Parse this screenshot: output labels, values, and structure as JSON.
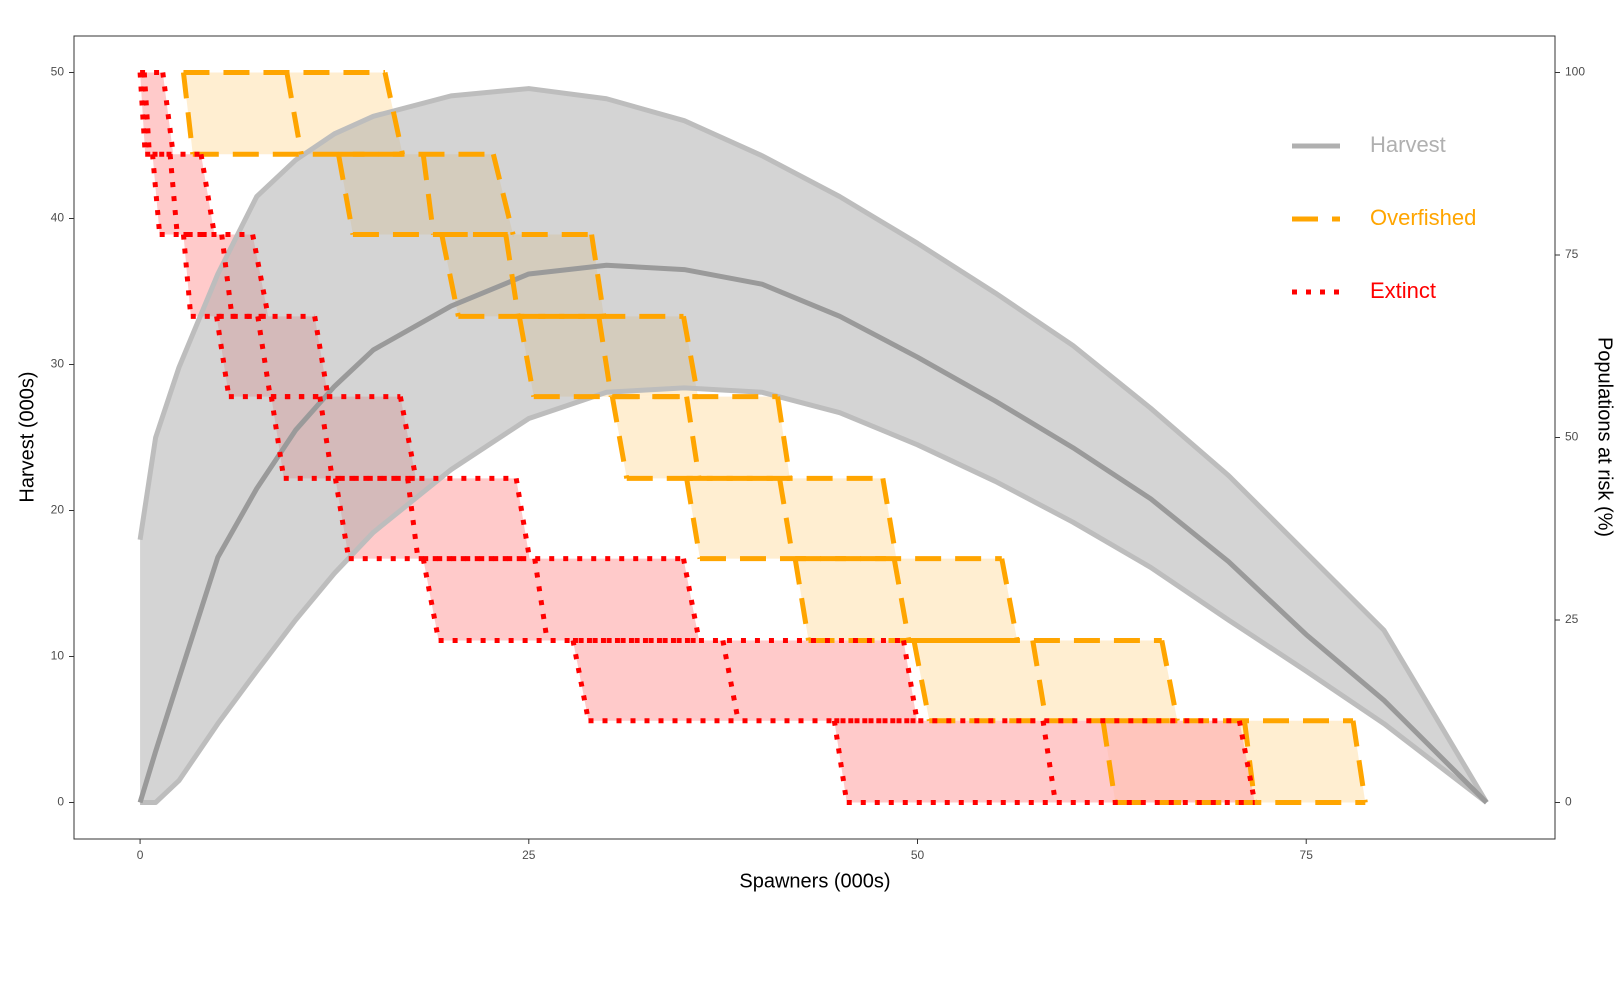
{
  "chart_data": {
    "type": "risk-bands",
    "xlabel": "Spawners (000s)",
    "ylabel": "Harvest (000s)",
    "y2label": "Populations at risk (%)",
    "xlim": [
      -4.25,
      91
    ],
    "ylim": [
      -2.5,
      52.5
    ],
    "y2lim": [
      -5,
      105
    ],
    "xticks": [
      0,
      25,
      50,
      75
    ],
    "yticks": [
      0,
      10,
      20,
      30,
      40,
      50
    ],
    "y2ticks": [
      0,
      25,
      50,
      75,
      100
    ],
    "legend_position": "top-right",
    "series": [
      {
        "name": "Harvest",
        "color": "#b0b0b0",
        "x": [
          0,
          1,
          2.5,
          5,
          7.5,
          10,
          12.5,
          15,
          20,
          25,
          30,
          35,
          40,
          45,
          50,
          55,
          60,
          65,
          70,
          75,
          80,
          86.6
        ],
        "median": [
          0,
          3.5,
          8.5,
          16.8,
          21.5,
          25.5,
          28.5,
          31,
          34,
          36.2,
          36.8,
          36.5,
          35.5,
          33.3,
          30.5,
          27.5,
          24.3,
          20.8,
          16.5,
          11.5,
          7,
          0
        ],
        "upper": [
          18,
          25,
          29.8,
          36.2,
          41.5,
          44,
          45.8,
          47,
          48.4,
          48.9,
          48.2,
          46.7,
          44.3,
          41.5,
          38.3,
          34.9,
          31.3,
          27,
          22.4,
          17.1,
          11.8,
          0
        ],
        "lower": [
          0,
          0,
          1.5,
          5.4,
          9,
          12.5,
          15.7,
          18.5,
          22.8,
          26.3,
          28.1,
          28.4,
          28.1,
          26.7,
          24.5,
          22,
          19.2,
          16.1,
          12.5,
          9,
          5.4,
          0
        ]
      },
      {
        "name": "Overfished",
        "color": "#ffa500",
        "fill": "#ffe7bd",
        "line": "dashed",
        "y_edges": [
          50,
          44.4,
          38.9,
          33.3,
          27.8,
          22.2,
          16.7,
          11.1,
          5.6,
          0
        ],
        "x_top": [
          [
            2.79,
            9.44,
            15.75
          ],
          [
            12.76,
            18.21,
            22.72
          ],
          [
            19.4,
            23.52,
            29.04
          ],
          [
            24.39,
            29.5,
            34.95
          ],
          [
            30.37,
            35.15,
            41
          ],
          [
            35.15,
            41.13,
            47.77
          ],
          [
            42.13,
            48.5,
            55.42
          ],
          [
            49.77,
            57.41,
            65.71
          ],
          [
            61.93,
            71.03,
            78.01
          ]
        ],
        "x_bottom": [
          [
            3.39,
            10.37,
            16.88
          ],
          [
            13.69,
            18.87,
            23.99
          ],
          [
            20.47,
            24.32,
            29.83
          ],
          [
            25.32,
            30.3,
            35.88
          ],
          [
            31.3,
            35.95,
            41.79
          ],
          [
            36.01,
            41.99,
            48.64
          ],
          [
            42.99,
            49.44,
            56.41
          ],
          [
            50.76,
            58.27,
            66.71
          ],
          [
            62.72,
            71.69,
            78.8
          ]
        ]
      },
      {
        "name": "Extinct",
        "color": "#ff0000",
        "fill": "#ffb3b3",
        "line": "dotted",
        "y_edges": [
          50,
          44.4,
          38.9,
          33.3,
          27.8,
          22.2,
          16.7,
          11.1,
          5.6,
          0
        ],
        "x_top": [
          [
            0,
            0.27,
            1.46
          ],
          [
            0.8,
            1.93,
            3.92
          ],
          [
            2.79,
            5.25,
            7.24
          ],
          [
            4.92,
            7.57,
            11.23
          ],
          [
            8.44,
            11.56,
            16.74
          ],
          [
            12.56,
            17.21,
            24.19
          ],
          [
            18.21,
            25.38,
            34.95
          ],
          [
            27.84,
            37.48,
            49.1
          ],
          [
            44.65,
            58.07,
            70.7
          ]
        ],
        "x_bottom": [
          [
            0.33,
            0.6,
            2.13
          ],
          [
            1.26,
            2.39,
            4.78
          ],
          [
            3.26,
            5.91,
            8.24
          ],
          [
            5.71,
            8.37,
            12.09
          ],
          [
            9.24,
            12.36,
            17.74
          ],
          [
            13.42,
            17.87,
            25.05
          ],
          [
            19.2,
            26.18,
            35.95
          ],
          [
            28.84,
            38.47,
            49.97
          ],
          [
            45.45,
            58.87,
            71.69
          ]
        ]
      }
    ]
  }
}
